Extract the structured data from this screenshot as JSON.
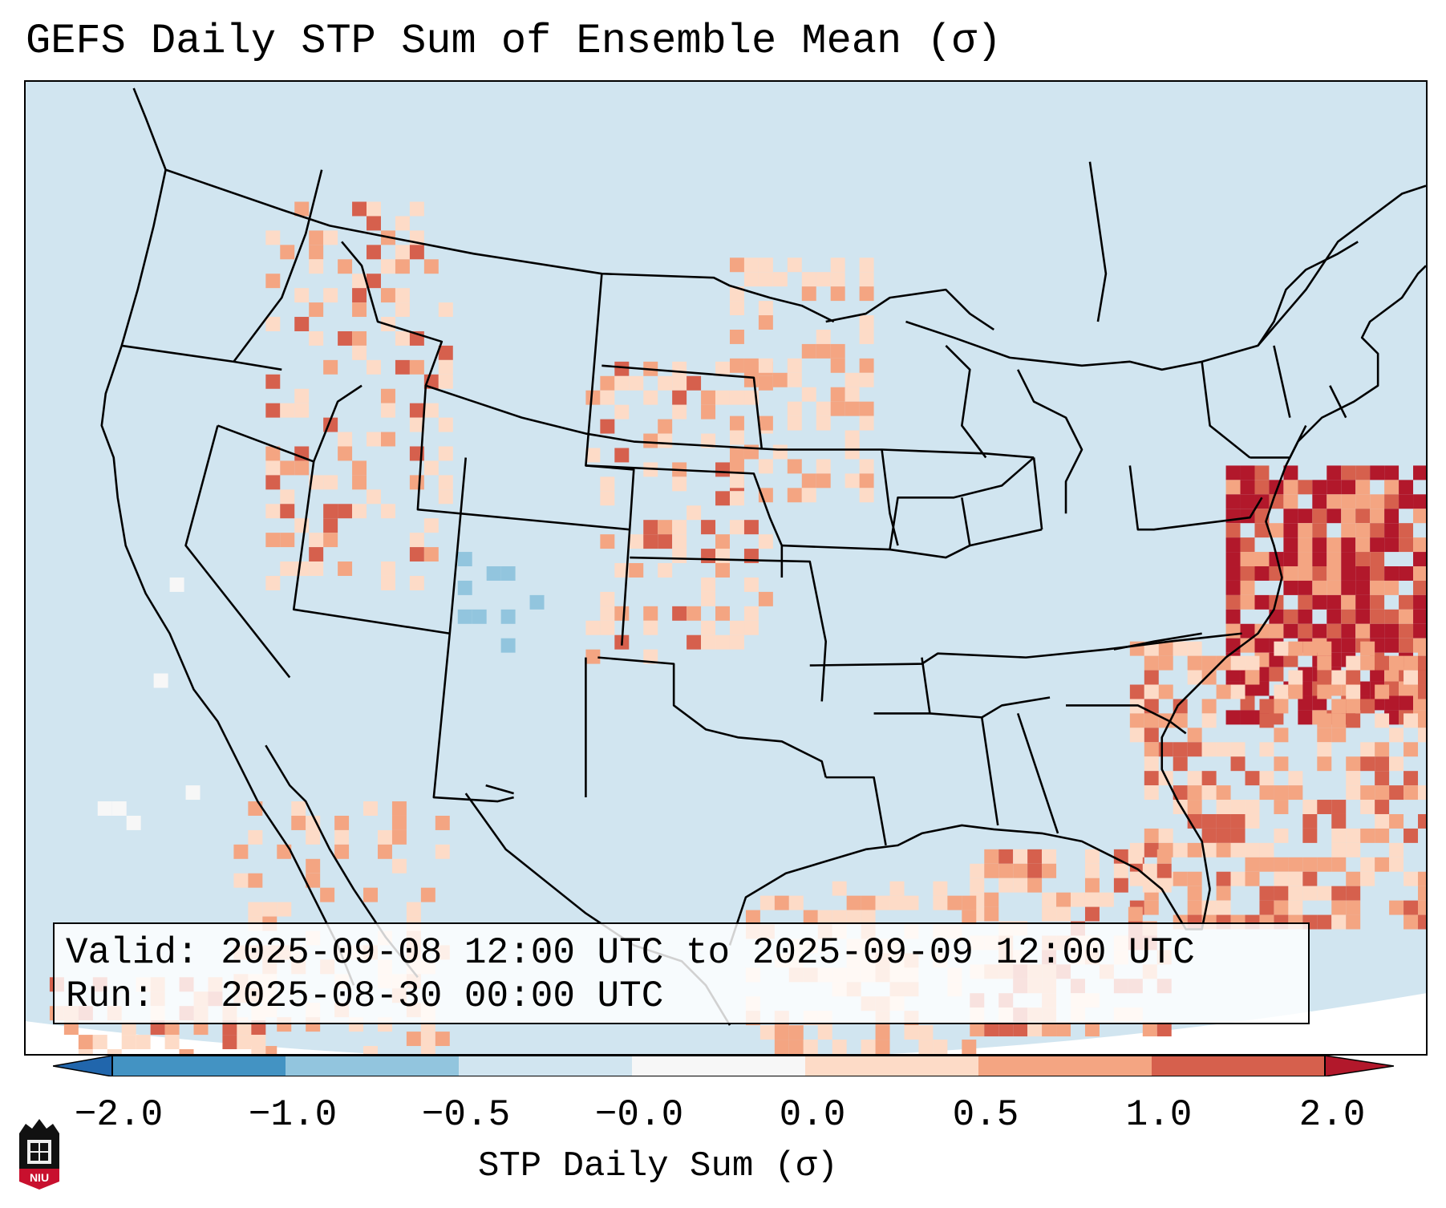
{
  "title": "GEFS Daily STP Sum of Ensemble Mean (σ)",
  "valid_label": "Valid:",
  "valid_value": "2025-09-08 12:00 UTC to 2025-09-09 12:00 UTC",
  "run_label": "Run:",
  "run_value": "2025-08-30 00:00 UTC",
  "colorbar": {
    "label": "STP Daily Sum (σ)",
    "ticks": [
      "−2.0",
      "−1.0",
      "−0.5",
      "−0.0",
      "0.0",
      "0.5",
      "1.0",
      "2.0"
    ],
    "bins": [
      {
        "range": "< -2.0",
        "color": "#2166ac"
      },
      {
        "range": "-2.0 to -1.0",
        "color": "#4393c3"
      },
      {
        "range": "-1.0 to -0.5",
        "color": "#92c5de"
      },
      {
        "range": "-0.5 to -0.0",
        "color": "#d1e5f0"
      },
      {
        "range": "-0.0 to 0.0",
        "color": "#f7f7f7"
      },
      {
        "range": "0.0 to 0.5",
        "color": "#fddbc7"
      },
      {
        "range": "0.5 to 1.0",
        "color": "#f4a582"
      },
      {
        "range": "1.0 to 2.0",
        "color": "#d6604d"
      },
      {
        "range": "> 2.0",
        "color": "#b2182b"
      }
    ]
  },
  "logo_text": "NIU",
  "colors": {
    "ocean_background": "#d1e5f0",
    "positive_low": "#fddbc7",
    "positive_mid": "#f4a582",
    "positive_high": "#d6604d",
    "positive_max": "#b2182b",
    "negative_low": "#92c5de",
    "neutral": "#f7f7f7",
    "border": "#000000"
  }
}
